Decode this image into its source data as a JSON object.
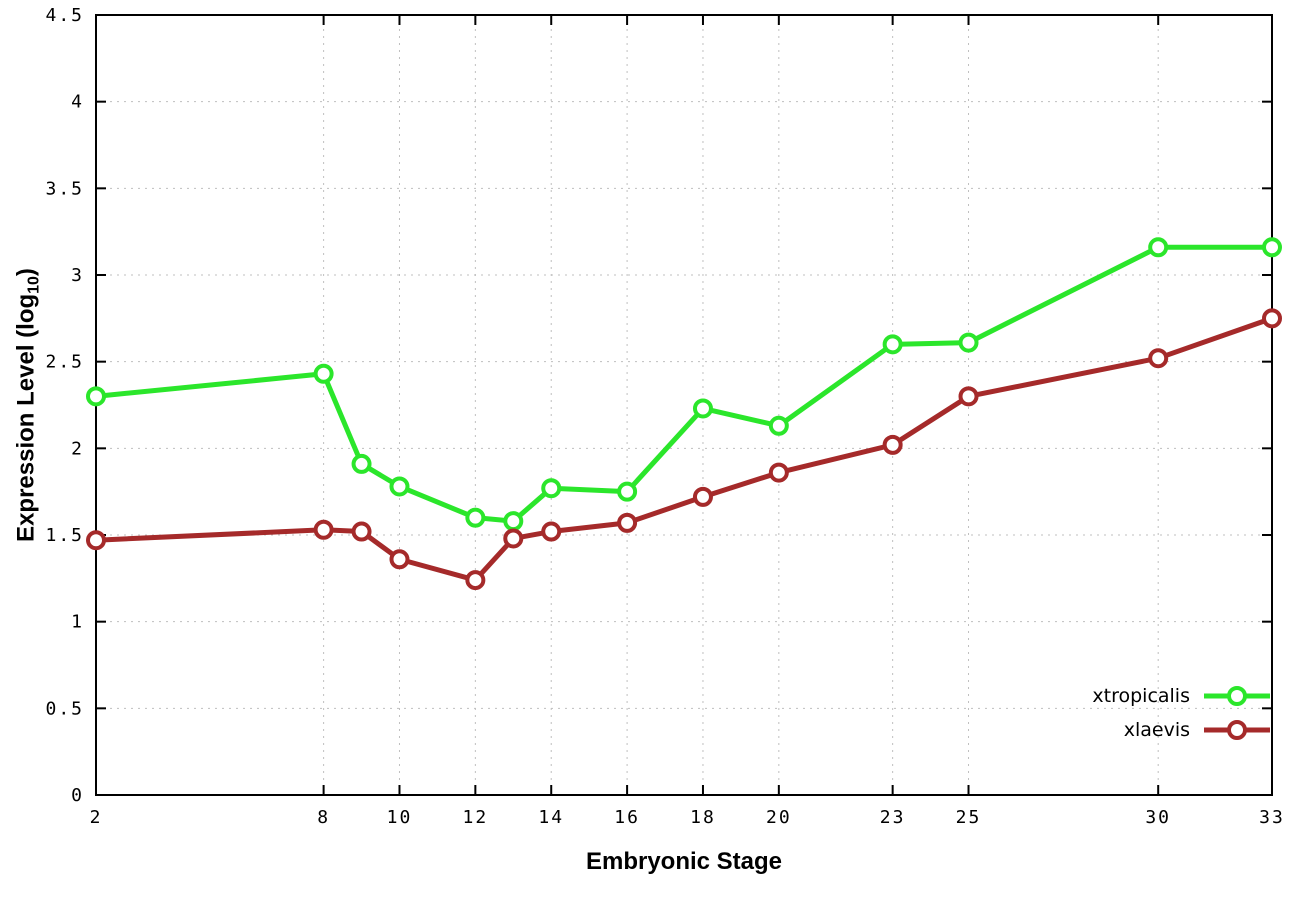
{
  "chart_data": {
    "type": "line",
    "title": "",
    "xlabel": "Embryonic Stage",
    "ylabel": "Expression Level (log10)",
    "ylabel_main": "Expression Level (log",
    "ylabel_sub": "10",
    "ylabel_suffix": ")",
    "x": [
      2,
      8,
      9,
      10,
      12,
      13,
      14,
      16,
      18,
      20,
      23,
      25,
      30,
      33
    ],
    "series": [
      {
        "name": "xtropicalis",
        "color": "#2be62b",
        "values": [
          2.3,
          2.43,
          1.91,
          1.78,
          1.6,
          1.58,
          1.77,
          1.75,
          2.23,
          2.13,
          2.6,
          2.61,
          3.16,
          3.16
        ]
      },
      {
        "name": "xlaevis",
        "color": "#a52a2a",
        "values": [
          1.47,
          1.53,
          1.52,
          1.36,
          1.24,
          1.48,
          1.52,
          1.57,
          1.72,
          1.86,
          2.02,
          2.3,
          2.52,
          2.75
        ]
      }
    ],
    "xlim": [
      2,
      33
    ],
    "ylim": [
      0,
      4.5
    ],
    "x_ticks": [
      2,
      8,
      10,
      12,
      14,
      16,
      18,
      20,
      23,
      25,
      30,
      33
    ],
    "y_ticks": [
      0,
      0.5,
      1,
      1.5,
      2,
      2.5,
      3,
      3.5,
      4,
      4.5
    ],
    "grid": "dotted",
    "grid_color": "#bfbfbf",
    "border_color": "#000000",
    "legend_position": "inside-bottom-right"
  }
}
